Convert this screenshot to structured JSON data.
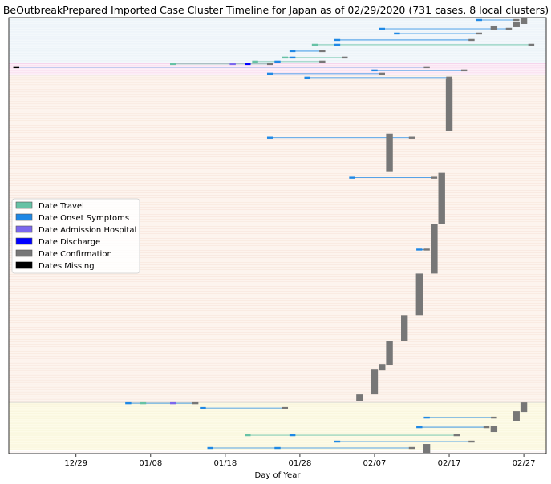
{
  "chart_data": {
    "type": "timeline",
    "title": "BeOutbreakPrepared Imported Case Cluster Timeline for Japan as of 02/29/2020   (731 cases, 8 local clusters)",
    "xlabel": "Day of Year",
    "ylabel": "",
    "x_ticks": [
      "12/29",
      "01/08",
      "01/18",
      "01/28",
      "02/07",
      "02/17",
      "02/27"
    ],
    "x_range": [
      "2019-12-20",
      "2020-03-01"
    ],
    "legend": {
      "placement": "center-left",
      "entries": [
        {
          "name": "Date Travel",
          "color": "#66c2a5"
        },
        {
          "name": "Date Onset Symptoms",
          "color": "#1e88e5"
        },
        {
          "name": "Date Admission Hospital",
          "color": "#7b68ee"
        },
        {
          "name": "Date Discharge",
          "color": "#0000ff"
        },
        {
          "name": "Date Confirmation",
          "color": "#777777"
        },
        {
          "name": "Dates Missing",
          "color": "#000000"
        }
      ]
    },
    "clusters": [
      {
        "rows_from": 0,
        "rows_to": 56,
        "band_color": "#f3f8fb"
      },
      {
        "rows_from": 57,
        "rows_to": 71,
        "band_color": "#fdeff8"
      },
      {
        "rows_from": 72,
        "rows_to": 480,
        "band_color": "#fdf4ee"
      },
      {
        "rows_from": 481,
        "rows_to": 540,
        "band_color": "#fdfbe8"
      }
    ],
    "confirmation_blocks": [
      {
        "date": "2020-02-27",
        "rows": [
          0,
          8
        ]
      },
      {
        "date": "2020-02-26",
        "rows": [
          6,
          12
        ]
      },
      {
        "date": "2020-02-23",
        "rows": [
          10,
          16
        ]
      },
      {
        "date": "2020-02-17",
        "rows": [
          76,
          142
        ]
      },
      {
        "date": "2020-02-09",
        "rows": [
          145,
          193
        ]
      },
      {
        "date": "2020-02-16",
        "rows": [
          194,
          258
        ]
      },
      {
        "date": "2020-02-15",
        "rows": [
          258,
          320
        ]
      },
      {
        "date": "2020-02-13",
        "rows": [
          320,
          372
        ]
      },
      {
        "date": "2020-02-11",
        "rows": [
          372,
          404
        ]
      },
      {
        "date": "2020-02-09",
        "rows": [
          404,
          434
        ]
      },
      {
        "date": "2020-02-07",
        "rows": [
          440,
          471
        ]
      },
      {
        "date": "2020-02-08",
        "rows": [
          433,
          441
        ]
      },
      {
        "date": "2020-02-05",
        "rows": [
          471,
          479
        ]
      },
      {
        "date": "2020-02-27",
        "rows": [
          481,
          493
        ]
      },
      {
        "date": "2020-02-26",
        "rows": [
          492,
          504
        ]
      },
      {
        "date": "2020-02-23",
        "rows": [
          510,
          518
        ]
      },
      {
        "date": "2020-02-14",
        "rows": [
          533,
          544
        ]
      }
    ],
    "case_rows": [
      {
        "row": 3,
        "onset": "2020-02-21",
        "confirm": "2020-02-26"
      },
      {
        "row": 14,
        "onset": "2020-02-08",
        "confirm": "2020-02-25"
      },
      {
        "row": 20,
        "onset": "2020-02-10",
        "confirm": "2020-02-21"
      },
      {
        "row": 28,
        "onset": "2020-02-02",
        "confirm": "2020-02-20"
      },
      {
        "row": 34,
        "travel": "2020-01-30",
        "onset": "2020-02-02",
        "confirm": "2020-02-28"
      },
      {
        "row": 42,
        "onset": "2020-01-27",
        "confirm": "2020-01-31"
      },
      {
        "row": 50,
        "travel": "2020-01-26",
        "onset": "2020-01-27",
        "confirm": "2020-02-03"
      },
      {
        "row": 55,
        "travel": "2020-01-22",
        "onset": "2020-01-25",
        "confirm": "2020-01-31"
      },
      {
        "row": 58,
        "travel": "2020-01-11",
        "admission": "2020-01-19",
        "discharge": "2020-01-21",
        "confirm": "2020-01-24"
      },
      {
        "row": 62,
        "missing": "2019-12-21",
        "confirm": "2020-02-14"
      },
      {
        "row": 66,
        "onset": "2020-02-07",
        "confirm": "2020-02-19"
      },
      {
        "row": 70,
        "onset": "2020-01-24",
        "confirm": "2020-02-08"
      },
      {
        "row": 75,
        "onset": "2020-01-29",
        "confirm": "2020-02-17"
      },
      {
        "row": 150,
        "onset": "2020-01-24",
        "confirm": "2020-02-12"
      },
      {
        "row": 200,
        "onset": "2020-02-04",
        "confirm": "2020-02-15"
      },
      {
        "row": 290,
        "onset": "2020-02-13",
        "confirm": "2020-02-14"
      },
      {
        "row": 482,
        "onset": "2020-01-05",
        "travel": "2020-01-07",
        "admission": "2020-01-11",
        "confirm": "2020-01-14"
      },
      {
        "row": 488,
        "onset": "2020-01-15",
        "confirm": "2020-01-26"
      },
      {
        "row": 500,
        "onset": "2020-02-14",
        "confirm": "2020-02-23"
      },
      {
        "row": 512,
        "onset": "2020-02-13",
        "confirm": "2020-02-22"
      },
      {
        "row": 522,
        "travel": "2020-01-21",
        "onset": "2020-01-27",
        "confirm": "2020-02-18"
      },
      {
        "row": 530,
        "onset": "2020-02-02",
        "confirm": "2020-02-20"
      },
      {
        "row": 538,
        "onset": "2020-01-16",
        "onset_end": "2020-01-25",
        "confirm": "2020-02-12"
      }
    ]
  }
}
